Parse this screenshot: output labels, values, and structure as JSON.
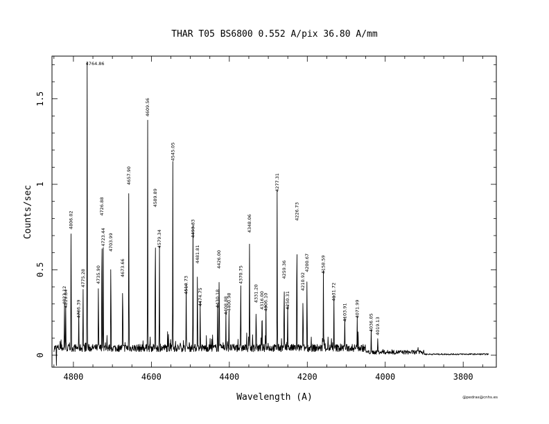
{
  "chart_data": {
    "type": "line",
    "title": "THAR  T05  BS6800  0.552 A/pix  36.80 A/mm",
    "xlabel": "Wavelength (A)",
    "ylabel": "Counts/sec",
    "xlim": [
      4855,
      3715
    ],
    "ylim": [
      -0.07,
      1.75
    ],
    "x_ticks": [
      4800,
      4600,
      4400,
      4200,
      4000,
      3800
    ],
    "y_ticks": [
      0,
      0.5,
      1,
      1.5
    ],
    "x_tick_labels": [
      "4800",
      "4600",
      "4400",
      "4200",
      "4000",
      "3800"
    ],
    "y_tick_labels": [
      "0",
      "0.5",
      "1",
      "1.5"
    ],
    "x_direction": "decreasing",
    "grid": false,
    "spectrum_range": [
      4850,
      3735
    ],
    "peaks": [
      {
        "wavelength": 4764.86,
        "label": "4764.86",
        "height": 1.71
      },
      {
        "wavelength": 4609.56,
        "label": "4609.56",
        "height": 1.38
      },
      {
        "wavelength": 4545.05,
        "label": "4545.05",
        "height": 1.12
      },
      {
        "wavelength": 4657.9,
        "label": "4657.90",
        "height": 0.98
      },
      {
        "wavelength": 4277.31,
        "label": "4277.31",
        "height": 0.94
      },
      {
        "wavelength": 4589.89,
        "label": "4589.89",
        "height": 0.85
      },
      {
        "wavelength": 4226.73,
        "label": "4226.73",
        "height": 0.77
      },
      {
        "wavelength": 4806.02,
        "label": "4806.02",
        "height": 0.72
      },
      {
        "wavelength": 4726.88,
        "label": "4726.88",
        "height": 0.8
      },
      {
        "wavelength": 4348.06,
        "label": "4348.06",
        "height": 0.7
      },
      {
        "wavelength": 4493.33,
        "label": "4493.33",
        "height": 0.67
      },
      {
        "wavelength": 4579.34,
        "label": "4579.34",
        "height": 0.61
      },
      {
        "wavelength": 4723.44,
        "label": "4723.44",
        "height": 0.62
      },
      {
        "wavelength": 4703.99,
        "label": "4703.99",
        "height": 0.59
      },
      {
        "wavelength": 4481.81,
        "label": "4481.81",
        "height": 0.52
      },
      {
        "wavelength": 4426.0,
        "label": "4426.00",
        "height": 0.49
      },
      {
        "wavelength": 4200.67,
        "label": "4200.67",
        "height": 0.47
      },
      {
        "wavelength": 4158.59,
        "label": "4158.59",
        "height": 0.46
      },
      {
        "wavelength": 4673.66,
        "label": "4673.66",
        "height": 0.44
      },
      {
        "wavelength": 4259.36,
        "label": "4259.36",
        "height": 0.43
      },
      {
        "wavelength": 4370.75,
        "label": "4370.75",
        "height": 0.4
      },
      {
        "wavelength": 4735.9,
        "label": "4735.90",
        "height": 0.4
      },
      {
        "wavelength": 4775.28,
        "label": "4775.28",
        "height": 0.38
      },
      {
        "wavelength": 4210.92,
        "label": "4210.92",
        "height": 0.36
      },
      {
        "wavelength": 4510.73,
        "label": "4510.73",
        "height": 0.34
      },
      {
        "wavelength": 4131.72,
        "label": "4131.72",
        "height": 0.3
      },
      {
        "wavelength": 4331.2,
        "label": "4331.20",
        "height": 0.29
      },
      {
        "wavelength": 4474.75,
        "label": "4474.75",
        "height": 0.27
      },
      {
        "wavelength": 4430.18,
        "label": "4430.18",
        "height": 0.26
      },
      {
        "wavelength": 4316.0,
        "label": "4316.00",
        "height": 0.25
      },
      {
        "wavelength": 4250.31,
        "label": "4250.31",
        "height": 0.25
      },
      {
        "wavelength": 4400.98,
        "label": "4400.98",
        "height": 0.24
      },
      {
        "wavelength": 4306.1,
        "label": "4306.10",
        "height": 0.24
      },
      {
        "wavelength": 4408.88,
        "label": "4408.88",
        "height": 0.22
      },
      {
        "wavelength": 4071.99,
        "label": "4071.99",
        "height": 0.2
      },
      {
        "wavelength": 4786.39,
        "label": "4786.39",
        "height": 0.2
      },
      {
        "wavelength": 4103.91,
        "label": "4103.91",
        "height": 0.18
      },
      {
        "wavelength": 4036.05,
        "label": "4036.05",
        "height": 0.12
      },
      {
        "wavelength": 4019.13,
        "label": "4019.13",
        "height": 0.1
      },
      {
        "wavelength": 4823.12,
        "label": "4823.12",
        "height": 0.28
      },
      {
        "wavelength": 4819.84,
        "label": "4819.84",
        "height": 0.26
      }
    ]
  },
  "credit": "@pedras@cnhs.es"
}
